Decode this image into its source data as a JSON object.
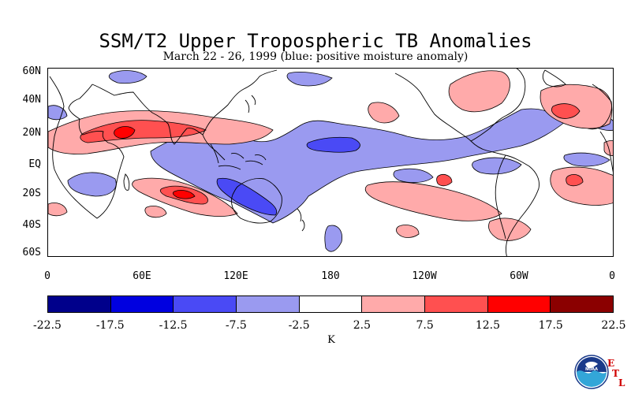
{
  "title": "SSM/T2 Upper Tropospheric TB Anomalies",
  "subtitle": "March 22 - 26, 1999 (blue: positive moisture anomaly)",
  "lat_labels": [
    "60N",
    "40N",
    "20N",
    "EQ",
    "20S",
    "40S",
    "60S"
  ],
  "lon_labels": [
    "0",
    "60E",
    "120E",
    "180",
    "120W",
    "60W",
    "0"
  ],
  "colorbar": {
    "levels": [
      "-22.5",
      "-17.5",
      "-12.5",
      "-7.5",
      "-2.5",
      "2.5",
      "7.5",
      "12.5",
      "17.5",
      "22.5"
    ],
    "colors": [
      "#00008b",
      "#0000e0",
      "#4a4af5",
      "#9a9af0",
      "#ffffff",
      "#ffaaaa",
      "#ff5050",
      "#ff0000",
      "#8b0000"
    ],
    "unit": "K"
  },
  "logo": {
    "name": "noaa-logo",
    "text": "NOAA",
    "letters": [
      "E",
      "T",
      "L"
    ]
  }
}
